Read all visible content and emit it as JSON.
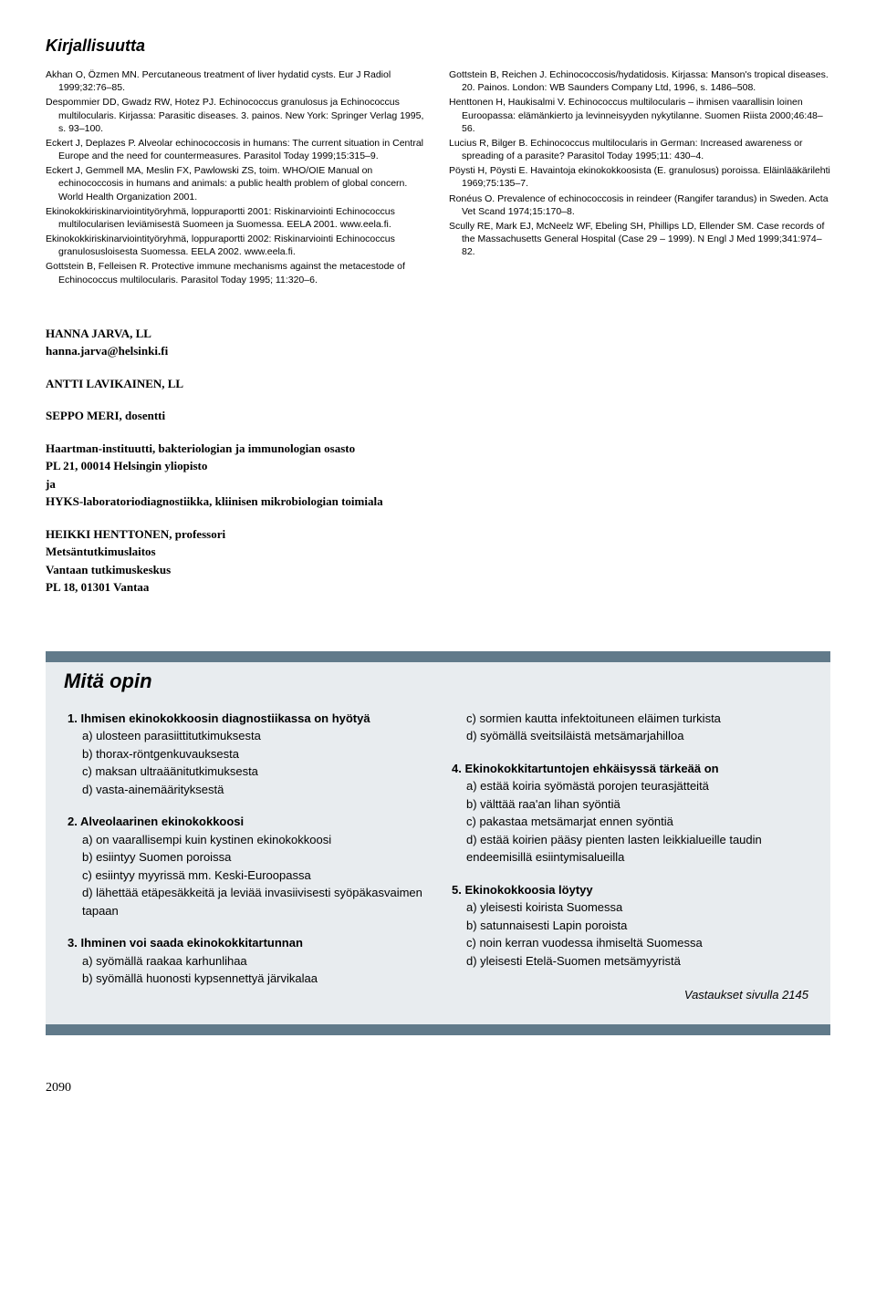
{
  "bibliography": {
    "title": "Kirjallisuutta",
    "left": [
      "Akhan O, Özmen MN. Percutaneous treatment of liver hydatid cysts. Eur J Radiol 1999;32:76–85.",
      "Despommier DD, Gwadz RW, Hotez PJ. Echinococcus granulosus ja Echinococcus multilocularis. Kirjassa: Parasitic diseases. 3. painos. New York: Springer Verlag 1995, s. 93–100.",
      "Eckert J, Deplazes P. Alveolar echinococcosis in humans: The current situation in Central Europe and the need for countermeasures. Parasitol Today 1999;15:315–9.",
      "Eckert J, Gemmell MA, Meslin FX, Pawlowski ZS, toim. WHO/OIE Manual on echinococcosis in humans and animals: a public health problem of global concern. World Health Organization 2001.",
      "Ekinokokkiriskinarviointityöryhmä, loppuraportti 2001: Riskinarviointi Echinococcus multilocularisen leviämisestä Suomeen ja Suomessa. EELA 2001. www.eela.fi.",
      "Ekinokokkiriskinarviointityöryhmä, loppuraportti 2002: Riskinarviointi Echinococcus granulosusloisesta Suomessa. EELA 2002. www.eela.fi.",
      "Gottstein B, Felleisen R. Protective immune mechanisms against the metacestode of Echinococcus multilocularis. Parasitol Today 1995; 11:320–6."
    ],
    "right": [
      "Gottstein B, Reichen J. Echinococcosis/hydatidosis. Kirjassa: Manson's tropical diseases. 20. Painos. London: WB Saunders Company Ltd, 1996, s. 1486–508.",
      "Henttonen H, Haukisalmi V. Echinococcus multilocularis – ihmisen vaarallisin loinen Euroopassa: elämänkierto ja levinneisyyden nykytilanne. Suomen Riista 2000;46:48–56.",
      "Lucius R, Bilger B. Echinococcus multilocularis in German: Increased awareness or spreading of a parasite? Parasitol Today 1995;11: 430–4.",
      "Pöysti H, Pöysti E. Havaintoja ekinokokkoosista (E. granulosus) poroissa. Eläinlääkärilehti 1969;75:135–7.",
      "Ronéus O. Prevalence of echinococcosis in reindeer (Rangifer tarandus) in Sweden. Acta Vet Scand 1974;15:170–8.",
      "Scully RE, Mark EJ, McNeelz WF, Ebeling SH, Phillips LD, Ellender SM. Case records of the Massachusetts General Hospital (Case 29 – 1999). N Engl J Med 1999;341:974–82."
    ]
  },
  "authors": {
    "a1_name": "HANNA JARVA, LL",
    "a1_email": "hanna.jarva@helsinki.fi",
    "a2_name": "ANTTI LAVIKAINEN, LL",
    "a3_name": "SEPPO MERI, dosentti",
    "affil1_l1": "Haartman-instituutti, bakteriologian ja immunologian osasto",
    "affil1_l2": "PL 21, 00014 Helsingin yliopisto",
    "affil1_l3": "ja",
    "affil1_l4": "HYKS-laboratoriodiagnostiikka, kliinisen mikrobiologian toimiala",
    "a4_name": "HEIKKI HENTTONEN, professori",
    "affil2_l1": "Metsäntutkimuslaitos",
    "affil2_l2": "Vantaan tutkimuskeskus",
    "affil2_l3": "PL 18, 01301 Vantaa"
  },
  "quiz": {
    "title": "Mitä opin",
    "q1": {
      "t": "1. Ihmisen ekinokokkoosin diagnostiikassa on hyötyä",
      "a": "a) ulosteen parasiittitutkimuksesta",
      "b": "b) thorax-röntgenkuvauksesta",
      "c": "c) maksan ultraäänitutkimuksesta",
      "d": "d) vasta-ainemäärityksestä"
    },
    "q2": {
      "t": "2. Alveolaarinen ekinokokkoosi",
      "a": "a) on vaarallisempi kuin kystinen ekinokokkoosi",
      "b": "b) esiintyy Suomen poroissa",
      "c": "c) esiintyy myyrissä mm. Keski-Euroopassa",
      "d": "d) lähettää etäpesäkkeitä ja leviää invasiivisesti syöpäkasvaimen tapaan"
    },
    "q3": {
      "t": "3. Ihminen voi saada ekinokokkitartunnan",
      "a": "a) syömällä raakaa karhunlihaa",
      "b": "b) syömällä huonosti kypsennettyä järvikalaa",
      "c": "c) sormien kautta infektoituneen eläimen turkista",
      "d": "d) syömällä sveitsiläistä metsämarjahilloa"
    },
    "q4": {
      "t": "4. Ekinokokkitartuntojen ehkäisyssä tärkeää on",
      "a": "a) estää koiria syömästä porojen teurasjätteitä",
      "b": "b) välttää raa'an lihan syöntiä",
      "c": "c) pakastaa metsämarjat ennen syöntiä",
      "d": "d) estää koirien pääsy pienten lasten leikkialueille taudin endeemisillä esiintymisalueilla"
    },
    "q5": {
      "t": "5. Ekinokokkoosia löytyy",
      "a": "a) yleisesti koirista Suomessa",
      "b": "b) satunnaisesti Lapin poroista",
      "c": "c) noin kerran vuodessa ihmiseltä Suomessa",
      "d": "d) yleisesti Etelä-Suomen metsämyyristä"
    },
    "answers_note": "Vastaukset sivulla 2145"
  },
  "page_number": "2090",
  "colors": {
    "box_border": "#617a8a",
    "box_bg": "#e8ecef"
  }
}
